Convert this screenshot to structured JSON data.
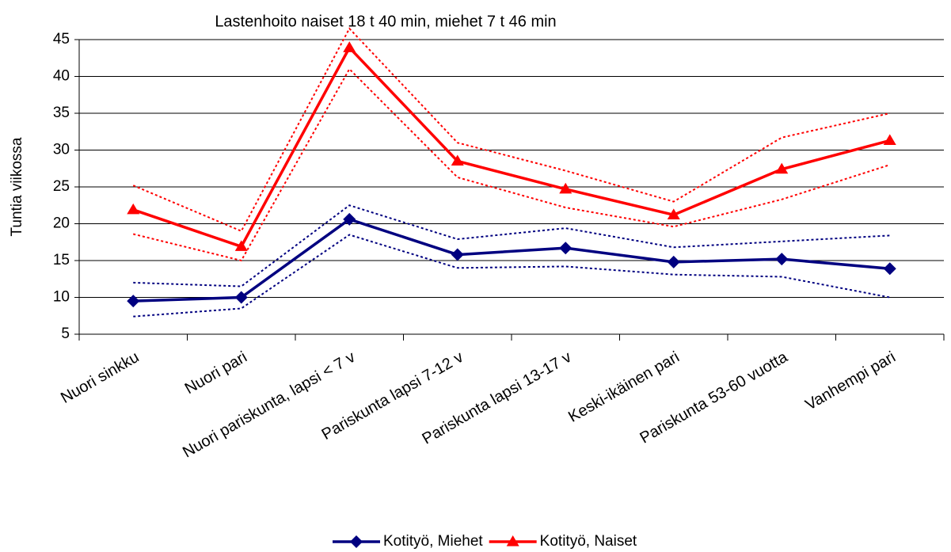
{
  "chart_data": {
    "type": "line",
    "title": "Lastenhoito naiset 18 t 40 min, miehet 7 t 46 min",
    "y_label": "Tuntia viikossa",
    "categories": [
      "Nuori sinkku",
      "Nuori pari",
      "Nuori pariskunta, lapsi < 7 v",
      "Pariskunta lapsi 7-12 v",
      "Pariskunta lapsi 13-17 v",
      "Keski-ikäinen pari",
      "Pariskunta 53-60 vuotta",
      "Vanhempi pari"
    ],
    "series": [
      {
        "name": "Kotityö, Miehet",
        "color": "#000080",
        "marker": "diamond",
        "values": [
          9.5,
          10,
          20.6,
          15.8,
          16.7,
          14.8,
          15.2,
          13.9
        ]
      },
      {
        "name": "Kotityö, Naiset",
        "color": "#ff0000",
        "marker": "triangle",
        "values": [
          21.9,
          16.9,
          43.9,
          28.5,
          24.7,
          21.2,
          27.4,
          31.3
        ]
      },
      {
        "color": "#ff0000",
        "dash": "dotted",
        "values": [
          25.2,
          19.0,
          46.5,
          31.0,
          27.2,
          23.0,
          31.7,
          35.0
        ]
      },
      {
        "color": "#ff0000",
        "dash": "dotted",
        "values": [
          18.6,
          15.0,
          41.0,
          26.3,
          22.2,
          19.6,
          23.3,
          28.0
        ]
      },
      {
        "color": "#000080",
        "dash": "dotted",
        "values": [
          12.0,
          11.5,
          22.5,
          17.9,
          19.4,
          16.8,
          17.6,
          18.4
        ]
      },
      {
        "color": "#000080",
        "dash": "dotted",
        "values": [
          7.4,
          8.5,
          18.5,
          14.0,
          14.2,
          13.1,
          12.8,
          10.0
        ]
      }
    ],
    "ylim": [
      5,
      45
    ],
    "yticks": [
      5,
      10,
      15,
      20,
      25,
      30,
      35,
      40,
      45
    ],
    "grid": true
  }
}
